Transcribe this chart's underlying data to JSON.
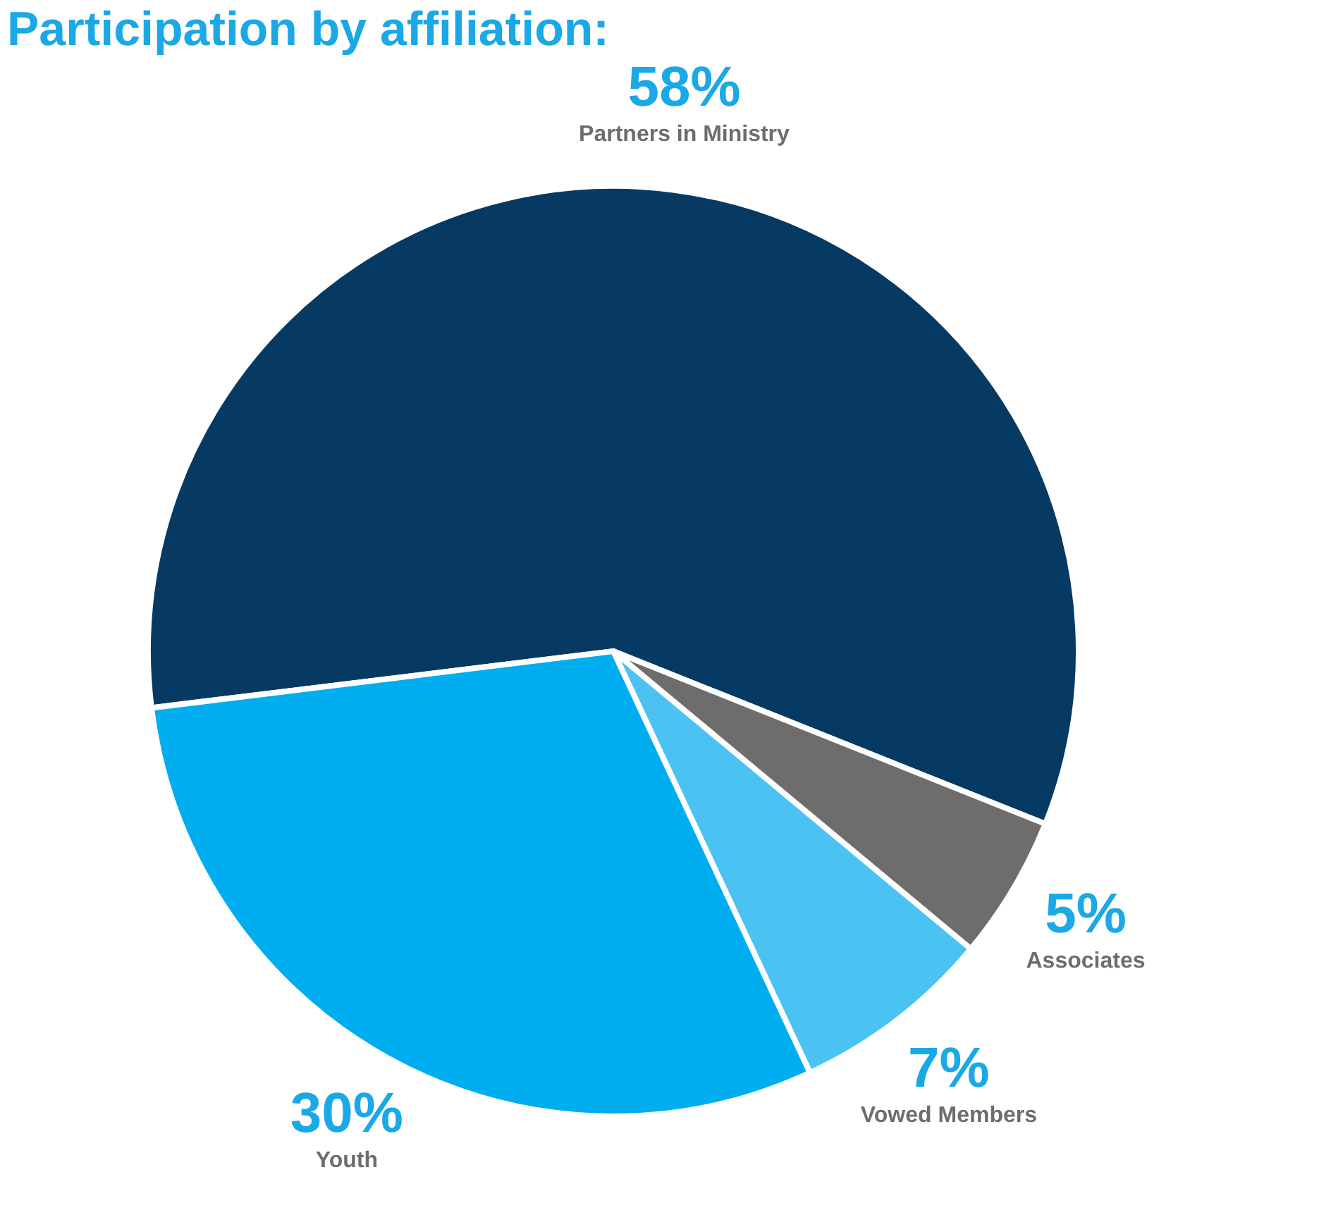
{
  "chart_data": {
    "type": "pie",
    "title": "Participation by affiliation:",
    "categories": [
      "Partners in Ministry",
      "Associates",
      "Vowed Members",
      "Youth"
    ],
    "values": [
      58,
      5,
      7,
      30
    ],
    "colors": [
      "#063a63",
      "#6d6d6d",
      "#4bc3f2",
      "#00aeef"
    ],
    "value_labels": [
      "58%",
      "5%",
      "7%",
      "30%"
    ]
  }
}
